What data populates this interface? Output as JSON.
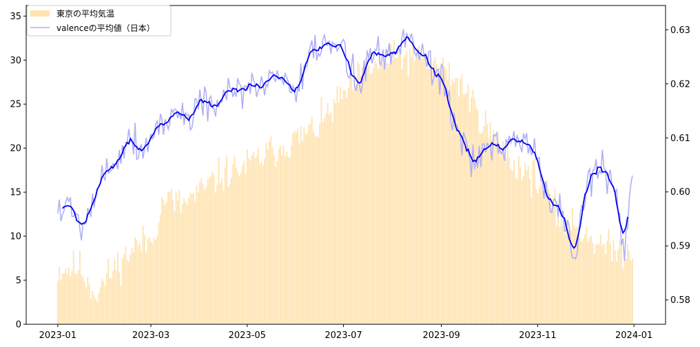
{
  "chart_data": {
    "type": "bar+line (dual axis)",
    "title": "",
    "xlabel": "",
    "ylabel_left": "",
    "ylabel_right": "",
    "grid": false,
    "legend_position": "upper-left",
    "x_range": [
      "2022-12-12",
      "2024-01-21"
    ],
    "x_ticks": [
      "2023-01",
      "2023-03",
      "2023-05",
      "2023-07",
      "2023-09",
      "2023-11",
      "2024-01"
    ],
    "y_left": {
      "min": 0,
      "max": 36.2,
      "ticks": [
        0,
        5,
        10,
        15,
        20,
        25,
        30,
        35
      ]
    },
    "y_right": {
      "min": 0.5755,
      "max": 0.6345,
      "ticks": [
        "0.58",
        "0.59",
        "0.60",
        "0.61",
        "0.62",
        "0.63"
      ]
    },
    "colors": {
      "temperature_bars": "#ffe3b0",
      "valence_daily": "#b0b0f5",
      "valence_smoothed": "#0000ee"
    },
    "series": [
      {
        "name": "東京の平均気温",
        "kind": "bar",
        "axis": "left",
        "x_start": "2023-01-01",
        "frequency": "daily",
        "keypoints": [
          [
            "2023-01-01",
            6.2
          ],
          [
            "2023-01-15",
            6.5
          ],
          [
            "2023-01-25",
            3.5
          ],
          [
            "2023-02-05",
            6.2
          ],
          [
            "2023-02-20",
            9.0
          ],
          [
            "2023-03-01",
            9.5
          ],
          [
            "2023-03-10",
            14.5
          ],
          [
            "2023-03-20",
            13.5
          ],
          [
            "2023-04-01",
            15.0
          ],
          [
            "2023-04-15",
            17.0
          ],
          [
            "2023-05-01",
            18.0
          ],
          [
            "2023-05-15",
            19.5
          ],
          [
            "2023-06-01",
            21.0
          ],
          [
            "2023-06-15",
            22.5
          ],
          [
            "2023-07-01",
            26.0
          ],
          [
            "2023-07-15",
            29.0
          ],
          [
            "2023-08-01",
            30.0
          ],
          [
            "2023-08-15",
            30.5
          ],
          [
            "2023-09-01",
            29.0
          ],
          [
            "2023-09-15",
            27.0
          ],
          [
            "2023-10-01",
            22.0
          ],
          [
            "2023-10-15",
            18.5
          ],
          [
            "2023-11-01",
            16.5
          ],
          [
            "2023-11-15",
            12.0
          ],
          [
            "2023-12-01",
            10.5
          ],
          [
            "2023-12-15",
            8.5
          ],
          [
            "2023-12-31",
            8.5
          ]
        ],
        "variation": {
          "amplitude": 2.0,
          "seed": 11
        }
      },
      {
        "name": "valenceの平均値（日本）",
        "kind": "line",
        "axis": "right",
        "x_start": "2023-01-01",
        "frequency": "daily",
        "keypoints": [
          [
            "2023-01-01",
            0.597
          ],
          [
            "2023-01-08",
            0.5975
          ],
          [
            "2023-01-15",
            0.5945
          ],
          [
            "2023-01-25",
            0.599
          ],
          [
            "2023-02-01",
            0.6045
          ],
          [
            "2023-02-10",
            0.6075
          ],
          [
            "2023-02-15",
            0.6105
          ],
          [
            "2023-02-25",
            0.6075
          ],
          [
            "2023-03-05",
            0.6125
          ],
          [
            "2023-03-15",
            0.614
          ],
          [
            "2023-03-25",
            0.614
          ],
          [
            "2023-04-01",
            0.6175
          ],
          [
            "2023-04-10",
            0.6155
          ],
          [
            "2023-04-20",
            0.6175
          ],
          [
            "2023-05-01",
            0.6195
          ],
          [
            "2023-05-15",
            0.6205
          ],
          [
            "2023-05-25",
            0.622
          ],
          [
            "2023-06-01",
            0.6175
          ],
          [
            "2023-06-10",
            0.6245
          ],
          [
            "2023-06-20",
            0.6275
          ],
          [
            "2023-06-30",
            0.6262
          ],
          [
            "2023-07-10",
            0.6205
          ],
          [
            "2023-07-20",
            0.6255
          ],
          [
            "2023-08-01",
            0.6255
          ],
          [
            "2023-08-10",
            0.6295
          ],
          [
            "2023-08-20",
            0.6255
          ],
          [
            "2023-09-01",
            0.6215
          ],
          [
            "2023-09-10",
            0.613
          ],
          [
            "2023-09-20",
            0.6055
          ],
          [
            "2023-10-01",
            0.6075
          ],
          [
            "2023-10-10",
            0.6075
          ],
          [
            "2023-10-20",
            0.6095
          ],
          [
            "2023-10-31",
            0.6075
          ],
          [
            "2023-11-05",
            0.5995
          ],
          [
            "2023-11-15",
            0.5975
          ],
          [
            "2023-11-25",
            0.5865
          ],
          [
            "2023-12-01",
            0.6015
          ],
          [
            "2023-12-10",
            0.6045
          ],
          [
            "2023-12-20",
            0.6015
          ],
          [
            "2023-12-26",
            0.5885
          ],
          [
            "2023-12-31",
            0.6055
          ]
        ],
        "variation": {
          "amplitude": 0.0035,
          "seed": 5
        }
      }
    ]
  }
}
